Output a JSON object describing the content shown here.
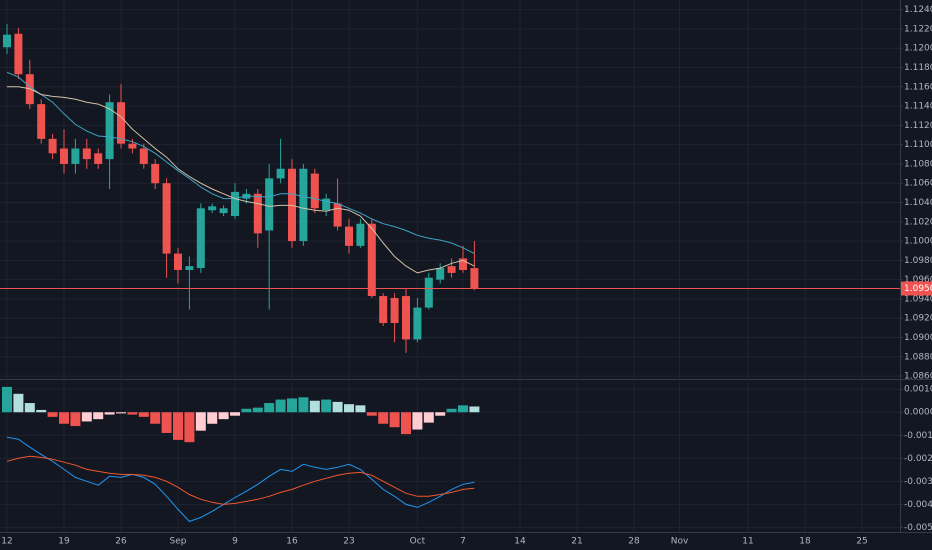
{
  "chart_data": [
    {
      "type": "candlestick",
      "categories": [
        "12",
        null,
        null,
        null,
        null,
        "19",
        null,
        null,
        null,
        null,
        "26",
        null,
        null,
        null,
        null,
        "Sep",
        null,
        null,
        null,
        null,
        "9",
        null,
        null,
        null,
        null,
        "16",
        null,
        null,
        null,
        null,
        "23",
        null,
        null,
        null,
        null,
        null,
        "Oct",
        null,
        null,
        null,
        "7",
        null,
        null,
        null,
        null,
        "14",
        null,
        null,
        null,
        null,
        "21",
        null,
        null,
        null,
        null,
        "28",
        null,
        null,
        null,
        "Nov",
        null,
        null,
        null,
        null,
        null,
        "11",
        null,
        null,
        null,
        null,
        "18",
        null,
        null,
        null,
        null,
        "25",
        null,
        null
      ],
      "open": [
        1.1201,
        1.1215,
        1.1173,
        1.1142,
        1.1106,
        1.1096,
        1.108,
        1.1096,
        1.1091,
        1.1085,
        1.1144,
        1.1101,
        1.1096,
        1.108,
        1.106,
        1.0987,
        1.097,
        1.0972,
        1.1032,
        1.1029,
        1.1026,
        1.1044,
        1.1049,
        1.1011,
        1.1065,
        1.1075,
        1.1,
        1.107,
        1.1032,
        1.1039,
        1.1015,
        1.0995,
        1.1018,
        1.0943,
        1.0941,
        1.0943,
        1.0898,
        1.0931,
        1.096,
        1.0974,
        1.0982,
        1.0972,
        null,
        null,
        null,
        null,
        null,
        null,
        null,
        null,
        null,
        null,
        null,
        null,
        null,
        null,
        null,
        null,
        null,
        null,
        null,
        null,
        null,
        null,
        null,
        null,
        null,
        null,
        null,
        null,
        null,
        null,
        null,
        null,
        null,
        null,
        null,
        null
      ],
      "high": [
        1.1225,
        1.1221,
        1.1188,
        1.1147,
        1.1111,
        1.1116,
        1.1106,
        1.1106,
        1.1096,
        1.1152,
        1.1163,
        1.1106,
        1.1101,
        1.1085,
        1.1065,
        1.0993,
        1.0984,
        1.1039,
        1.1039,
        1.1037,
        1.106,
        1.1054,
        1.1054,
        1.108,
        1.1106,
        1.1085,
        1.108,
        1.1075,
        1.1049,
        1.1065,
        1.1023,
        1.1023,
        1.1023,
        1.0946,
        1.0946,
        1.0951,
        1.0941,
        1.0967,
        1.0977,
        1.0982,
        1.0995,
        1.1,
        null,
        null,
        null,
        null,
        null,
        null,
        null,
        null,
        null,
        null,
        null,
        null,
        null,
        null,
        null,
        null,
        null,
        null,
        null,
        null,
        null,
        null,
        null,
        null,
        null,
        null,
        null,
        null,
        null,
        null,
        null,
        null,
        null,
        null,
        null,
        null
      ],
      "low": [
        1.1194,
        1.1168,
        1.1137,
        1.1101,
        1.1085,
        1.107,
        1.107,
        1.1075,
        1.1075,
        1.1054,
        1.1096,
        1.1091,
        1.1075,
        1.1054,
        1.0962,
        1.0956,
        1.0929,
        1.0967,
        1.1029,
        1.1026,
        1.1023,
        1.1039,
        1.0993,
        1.0929,
        1.106,
        1.0993,
        1.0995,
        1.1029,
        1.1026,
        1.1011,
        1.0987,
        1.0993,
        1.0941,
        1.0912,
        1.0895,
        1.0884,
        1.0895,
        1.0929,
        1.0956,
        1.0962,
        1.0967,
        1.0949,
        null,
        null,
        null,
        null,
        null,
        null,
        null,
        null,
        null,
        null,
        null,
        null,
        null,
        null,
        null,
        null,
        null,
        null,
        null,
        null,
        null,
        null,
        null,
        null,
        null,
        null,
        null,
        null,
        null,
        null,
        null,
        null,
        null,
        null,
        null,
        null
      ],
      "close": [
        1.1214,
        1.1173,
        1.1142,
        1.1106,
        1.1091,
        1.108,
        1.1096,
        1.1085,
        1.108,
        1.1144,
        1.1101,
        1.1096,
        1.108,
        1.106,
        1.0987,
        1.097,
        1.0974,
        1.1034,
        1.1036,
        1.1034,
        1.1051,
        1.1049,
        1.1008,
        1.1065,
        1.1075,
        1.1,
        1.1075,
        1.1034,
        1.1044,
        1.1015,
        1.0995,
        1.1018,
        1.0943,
        1.0915,
        1.0915,
        1.0898,
        1.0931,
        1.0962,
        1.0972,
        1.0967,
        1.097,
        1.09508,
        null,
        null,
        null,
        null,
        null,
        null,
        null,
        null,
        null,
        null,
        null,
        null,
        null,
        null,
        null,
        null,
        null,
        null,
        null,
        null,
        null,
        null,
        null,
        null,
        null,
        null,
        null,
        null,
        null,
        null,
        null,
        null,
        null,
        null,
        null,
        null
      ],
      "up_color": "#26a69a",
      "down_color": "#ef5350",
      "series": [
        {
          "color": "#3fa3c4",
          "values": [
            1.1175,
            1.117,
            1.116,
            1.1152,
            1.1144,
            1.1132,
            1.1121,
            1.1114,
            1.1109,
            1.1108,
            1.1106,
            1.1103,
            1.1098,
            1.1091,
            1.1082,
            1.1073,
            1.1065,
            1.1056,
            1.1049,
            1.1044,
            1.1044,
            1.1047,
            1.1046,
            1.1046,
            1.1049,
            1.1049,
            1.1046,
            1.1044,
            1.1041,
            1.1039,
            1.1034,
            1.1029,
            1.1023,
            1.1018,
            1.1015,
            1.1011,
            1.1006,
            1.1003,
            1.1001,
            1.0998,
            1.0993,
            1.0987,
            null,
            null,
            null,
            null,
            null,
            null,
            null,
            null,
            null,
            null,
            null,
            null,
            null,
            null,
            null,
            null,
            null,
            null,
            null,
            null,
            null,
            null,
            null,
            null,
            null,
            null,
            null,
            null,
            null,
            null,
            null,
            null,
            null,
            null,
            null,
            null
          ]
        },
        {
          "color": "#d3c2a6",
          "values": [
            1.116,
            1.116,
            1.1158,
            1.1152,
            1.115,
            1.1149,
            1.1147,
            1.1144,
            1.1142,
            1.1137,
            1.1129,
            1.1116,
            1.1106,
            1.1096,
            1.1087,
            1.1075,
            1.1067,
            1.106,
            1.1054,
            1.1049,
            1.1044,
            1.1041,
            1.1039,
            1.1036,
            1.1037,
            1.1037,
            1.1034,
            1.1032,
            1.1031,
            1.1034,
            1.1032,
            1.1026,
            1.1013,
            1.0998,
            1.0984,
            1.0974,
            1.0967,
            1.097,
            1.0972,
            1.0977,
            1.098,
            1.0974,
            null,
            null,
            null,
            null,
            null,
            null,
            null,
            null,
            null,
            null,
            null,
            null,
            null,
            null,
            null,
            null,
            null,
            null,
            null,
            null,
            null,
            null,
            null,
            null,
            null,
            null,
            null,
            null,
            null,
            null,
            null,
            null,
            null,
            null,
            null,
            null
          ]
        }
      ],
      "price_line": 1.09508,
      "price_line_color": "#ef5350",
      "ylim": [
        1.0858,
        1.125
      ],
      "yticks": [
        {
          "value": 1.124,
          "label": "1.12400"
        },
        {
          "value": 1.122,
          "label": "1.12200"
        },
        {
          "value": 1.12,
          "label": "1.12000"
        },
        {
          "value": 1.118,
          "label": "1.11800"
        },
        {
          "value": 1.116,
          "label": "1.11600"
        },
        {
          "value": 1.114,
          "label": "1.11400"
        },
        {
          "value": 1.112,
          "label": "1.11200"
        },
        {
          "value": 1.11,
          "label": "1.11000"
        },
        {
          "value": 1.108,
          "label": "1.10800"
        },
        {
          "value": 1.106,
          "label": "1.10600"
        },
        {
          "value": 1.104,
          "label": "1.10400"
        },
        {
          "value": 1.102,
          "label": "1.10200"
        },
        {
          "value": 1.1,
          "label": "1.10000"
        },
        {
          "value": 1.098,
          "label": "1.09800"
        },
        {
          "value": 1.096,
          "label": "1.09600"
        },
        {
          "value": 1.094,
          "label": "1.09400"
        },
        {
          "value": 1.092,
          "label": "1.09200"
        },
        {
          "value": 1.09,
          "label": "1.09000"
        },
        {
          "value": 1.088,
          "label": "1.08800"
        },
        {
          "value": 1.086,
          "label": "1.08600"
        }
      ],
      "grid": true
    },
    {
      "type": "macd",
      "values": [
        0.0011,
        0.0008,
        0.0004,
        0.0001,
        -0.0002,
        -0.0005,
        -0.0006,
        -0.0004,
        -0.0003,
        -0.0001,
        -5e-05,
        -0.0001,
        -0.0002,
        -0.0005,
        -0.0009,
        -0.0012,
        -0.0013,
        -0.0008,
        -0.0005,
        -0.0003,
        -0.00015,
        0.00015,
        0.0002,
        0.0004,
        0.00055,
        0.0006,
        0.00065,
        0.0005,
        0.00055,
        0.00045,
        0.00035,
        0.0003,
        -0.00015,
        -0.0005,
        -0.00065,
        -0.00095,
        -0.00075,
        -0.00045,
        -0.00015,
        0.00015,
        0.0003,
        0.00025,
        null,
        null,
        null,
        null,
        null,
        null,
        null,
        null,
        null,
        null,
        null,
        null,
        null,
        null,
        null,
        null,
        null,
        null,
        null,
        null,
        null,
        null,
        null,
        null,
        null,
        null,
        null,
        null,
        null,
        null,
        null,
        null,
        null,
        null,
        null,
        null
      ],
      "bar_colors": [
        "#26a69a",
        "#b2dfdb",
        "#b2dfdb",
        "#b2dfdb",
        "#ef5350",
        "#ef5350",
        "#ef5350",
        "#ffcdd2",
        "#ffcdd2",
        "#ffcdd2",
        "#ffcdd2",
        "#ef5350",
        "#ef5350",
        "#ef5350",
        "#ef5350",
        "#ef5350",
        "#ef5350",
        "#ffcdd2",
        "#ffcdd2",
        "#ffcdd2",
        "#ffcdd2",
        "#26a69a",
        "#26a69a",
        "#26a69a",
        "#26a69a",
        "#26a69a",
        "#26a69a",
        "#b2dfdb",
        "#26a69a",
        "#b2dfdb",
        "#b2dfdb",
        "#b2dfdb",
        "#ef5350",
        "#ef5350",
        "#ef5350",
        "#ef5350",
        "#ffcdd2",
        "#ffcdd2",
        "#ffcdd2",
        "#26a69a",
        "#26a69a",
        "#b2dfdb",
        null,
        null,
        null,
        null,
        null,
        null,
        null,
        null,
        null,
        null,
        null,
        null,
        null,
        null,
        null,
        null,
        null,
        null,
        null,
        null,
        null,
        null,
        null,
        null,
        null,
        null,
        null,
        null,
        null,
        null,
        null,
        null,
        null,
        null,
        null,
        null
      ],
      "series": [
        {
          "color": "#2196f3",
          "values": [
            -0.00109,
            -0.00117,
            -0.00152,
            -0.00183,
            -0.00213,
            -0.00248,
            -0.00283,
            -0.003,
            -0.00317,
            -0.00278,
            -0.00283,
            -0.0027,
            -0.00283,
            -0.00313,
            -0.00365,
            -0.00422,
            -0.00474,
            -0.00457,
            -0.0043,
            -0.004,
            -0.0037,
            -0.00343,
            -0.00313,
            -0.00278,
            -0.00248,
            -0.00257,
            -0.00226,
            -0.00239,
            -0.00248,
            -0.00239,
            -0.00226,
            -0.00248,
            -0.00291,
            -0.00335,
            -0.00365,
            -0.004,
            -0.00413,
            -0.00391,
            -0.00365,
            -0.00335,
            -0.00313,
            -0.00304,
            null,
            null,
            null,
            null,
            null,
            null,
            null,
            null,
            null,
            null,
            null,
            null,
            null,
            null,
            null,
            null,
            null,
            null,
            null,
            null,
            null,
            null,
            null,
            null,
            null,
            null,
            null,
            null,
            null,
            null,
            null,
            null,
            null,
            null,
            null,
            null
          ]
        },
        {
          "color": "#f0582b",
          "values": [
            -0.00213,
            -0.002,
            -0.00191,
            -0.00196,
            -0.00204,
            -0.00217,
            -0.0023,
            -0.00248,
            -0.00257,
            -0.00265,
            -0.0027,
            -0.0027,
            -0.00274,
            -0.00283,
            -0.003,
            -0.00326,
            -0.00357,
            -0.00378,
            -0.00391,
            -0.004,
            -0.00396,
            -0.00387,
            -0.00378,
            -0.00365,
            -0.00348,
            -0.00335,
            -0.00317,
            -0.003,
            -0.00287,
            -0.00274,
            -0.00265,
            -0.00261,
            -0.00274,
            -0.003,
            -0.00326,
            -0.00352,
            -0.00365,
            -0.00365,
            -0.00357,
            -0.00348,
            -0.00335,
            -0.0033,
            null,
            null,
            null,
            null,
            null,
            null,
            null,
            null,
            null,
            null,
            null,
            null,
            null,
            null,
            null,
            null,
            null,
            null,
            null,
            null,
            null,
            null,
            null,
            null,
            null,
            null,
            null,
            null,
            null,
            null,
            null,
            null,
            null,
            null,
            null,
            null
          ]
        }
      ],
      "ylim": [
        -0.0052,
        0.0014
      ],
      "yticks": [
        {
          "value": 0.001,
          "label": "0.00100"
        },
        {
          "value": 0,
          "label": "0.00000"
        },
        {
          "value": -0.001,
          "label": "-0.00100"
        },
        {
          "value": -0.002,
          "label": "-0.00200"
        },
        {
          "value": -0.003,
          "label": "-0.00300"
        },
        {
          "value": -0.004,
          "label": "-0.00400"
        },
        {
          "value": -0.005,
          "label": "-0.00500"
        }
      ],
      "grid": true
    }
  ]
}
